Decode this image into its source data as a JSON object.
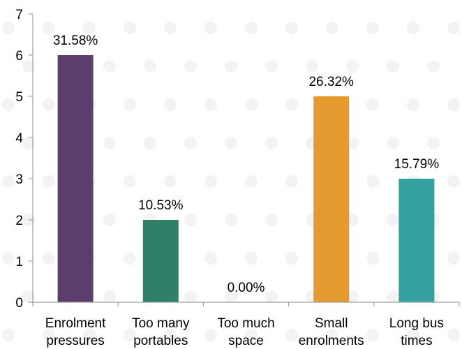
{
  "chart_data": {
    "type": "bar",
    "title": "",
    "xlabel": "",
    "ylabel": "",
    "ylim": [
      0,
      7
    ],
    "yticks": [
      0,
      1,
      2,
      3,
      4,
      5,
      6,
      7
    ],
    "grid": false,
    "legend": "none",
    "categories": [
      [
        "Enrolment",
        "pressures"
      ],
      [
        "Too many",
        "portables"
      ],
      [
        "Too much",
        "space"
      ],
      [
        "Small",
        "enrolments"
      ],
      [
        "Long bus",
        "times"
      ]
    ],
    "values": [
      6,
      2,
      0,
      5,
      3
    ],
    "data_labels": [
      "31.58%",
      "10.53%",
      "0.00%",
      "26.32%",
      "15.79%"
    ],
    "colors": [
      "#5b3d6e",
      "#2e8068",
      "#9e9e9e",
      "#e59a2f",
      "#35a0a0"
    ]
  }
}
